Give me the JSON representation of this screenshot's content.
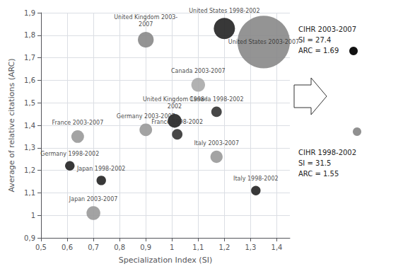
{
  "chart_data": {
    "type": "scatter",
    "xlabel": "Specialization Index (SI)",
    "ylabel": "Average of relative citations (ARC)",
    "labels": [
      "United States 1998-2002",
      "United States 2003-2007",
      "United Kingdom 2003-\n2007",
      "Canada 2003-2007",
      "United Kingdom 1998-\n2002",
      "Germany 2003-2007",
      "France 1998-2002",
      "Canada 1998-2002",
      "France 2003-2007",
      "Germany 1998-2002",
      "Japan 1998-2002",
      "Japan 2003-2007",
      "Italy 2003-2007",
      "Italy 1998-2002"
    ],
    "x": [
      1.2,
      1.35,
      0.9,
      1.1,
      1.01,
      0.9,
      1.02,
      1.17,
      0.64,
      0.61,
      0.73,
      0.7,
      1.17,
      1.32
    ],
    "values": [
      1.83,
      1.77,
      1.78,
      1.58,
      1.42,
      1.38,
      1.36,
      1.46,
      1.35,
      1.22,
      1.155,
      1.01,
      1.26,
      1.11
    ],
    "sizes": [
      900,
      5500,
      500,
      380,
      380,
      320,
      220,
      220,
      320,
      180,
      180,
      380,
      300,
      180
    ],
    "colors": [
      "#222222",
      "#888888",
      "#888888",
      "#aaaaaa",
      "#222222",
      "#999999",
      "#333333",
      "#333333",
      "#999999",
      "#222222",
      "#222222",
      "#999999",
      "#999999",
      "#222222"
    ],
    "xlim": [
      0.5,
      1.45
    ],
    "ylim": [
      0.9,
      1.9
    ],
    "xticks": [
      {
        "value": 0.5,
        "label": "0,5"
      },
      {
        "value": 0.6,
        "label": "0,6"
      },
      {
        "value": 0.7,
        "label": "0,7"
      },
      {
        "value": 0.8,
        "label": "0,8"
      },
      {
        "value": 0.9,
        "label": "0,9"
      },
      1,
      {
        "value": 1.1,
        "label": "1,1"
      },
      {
        "value": 1.2,
        "label": "1,2"
      },
      {
        "value": 1.3,
        "label": "1,3"
      },
      {
        "value": 1.4,
        "label": "1,4"
      }
    ],
    "yticks": [
      {
        "value": 0.9,
        "label": "0,9"
      },
      1,
      {
        "value": 1.1,
        "label": "1,1"
      },
      {
        "value": 1.2,
        "label": "1,2"
      },
      {
        "value": 1.3,
        "label": "1,3"
      },
      {
        "value": 1.4,
        "label": "1,4"
      },
      {
        "value": 1.5,
        "label": "1,5"
      },
      {
        "value": 1.6,
        "label": "1,6"
      },
      {
        "value": 1.7,
        "label": "1,7"
      },
      {
        "value": 1.8,
        "label": "1,8"
      },
      {
        "value": 1.9,
        "label": "1,9"
      }
    ],
    "grid": true,
    "annotations": [
      {
        "text": "CIHR 2003-2007\nSI = 27.4\nARC = 1.69",
        "color": "#111111"
      },
      {
        "text": "CIHR 1998-2002\nSI = 31.5\nARC = 1.55",
        "color": "#909090"
      }
    ]
  }
}
